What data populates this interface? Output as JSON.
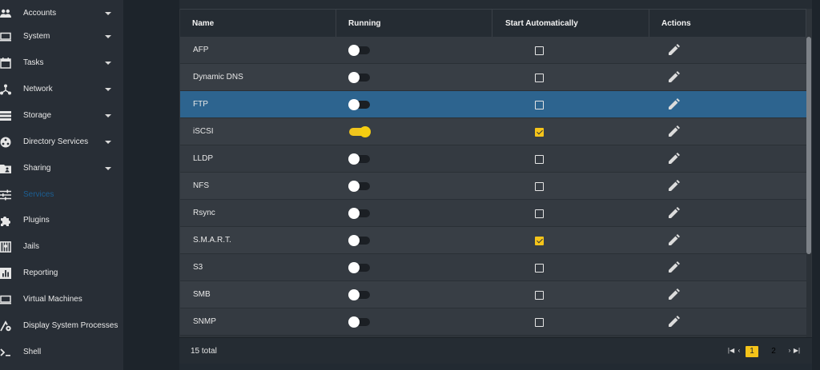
{
  "sidebar": {
    "items": [
      {
        "label": "Accounts",
        "icon": "accounts-icon",
        "has_caret": true
      },
      {
        "label": "System",
        "icon": "system-icon",
        "has_caret": true
      },
      {
        "label": "Tasks",
        "icon": "tasks-icon",
        "has_caret": true
      },
      {
        "label": "Network",
        "icon": "network-icon",
        "has_caret": true
      },
      {
        "label": "Storage",
        "icon": "storage-icon",
        "has_caret": true
      },
      {
        "label": "Directory Services",
        "icon": "directory-services-icon",
        "has_caret": true
      },
      {
        "label": "Sharing",
        "icon": "sharing-icon",
        "has_caret": true
      },
      {
        "label": "Services",
        "icon": "services-icon",
        "active": true
      },
      {
        "label": "Plugins",
        "icon": "plugins-icon"
      },
      {
        "label": "Jails",
        "icon": "jails-icon"
      },
      {
        "label": "Reporting",
        "icon": "reporting-icon"
      },
      {
        "label": "Virtual Machines",
        "icon": "virtual-machines-icon"
      },
      {
        "label": "Display System Processes",
        "icon": "display-system-processes-icon"
      },
      {
        "label": "Shell",
        "icon": "shell-icon"
      }
    ]
  },
  "table": {
    "headers": {
      "name": "Name",
      "running": "Running",
      "start_automatically": "Start Automatically",
      "actions": "Actions"
    },
    "rows": [
      {
        "name": "AFP",
        "running": false,
        "start_automatically": false
      },
      {
        "name": "Dynamic DNS",
        "running": false,
        "start_automatically": false
      },
      {
        "name": "FTP",
        "running": false,
        "start_automatically": false,
        "selected": true
      },
      {
        "name": "iSCSI",
        "running": true,
        "start_automatically": true
      },
      {
        "name": "LLDP",
        "running": false,
        "start_automatically": false
      },
      {
        "name": "NFS",
        "running": false,
        "start_automatically": false
      },
      {
        "name": "Rsync",
        "running": false,
        "start_automatically": false
      },
      {
        "name": "S.M.A.R.T.",
        "running": false,
        "start_automatically": true
      },
      {
        "name": "S3",
        "running": false,
        "start_automatically": false
      },
      {
        "name": "SMB",
        "running": false,
        "start_automatically": false
      },
      {
        "name": "SNMP",
        "running": false,
        "start_automatically": false
      }
    ]
  },
  "footer": {
    "total": "15 total",
    "pages": [
      "1",
      "2"
    ],
    "current_page": "1"
  },
  "colors": {
    "accent": "#f5c41a",
    "selected_row": "#2d648f",
    "active_nav": "#1c5f93"
  }
}
